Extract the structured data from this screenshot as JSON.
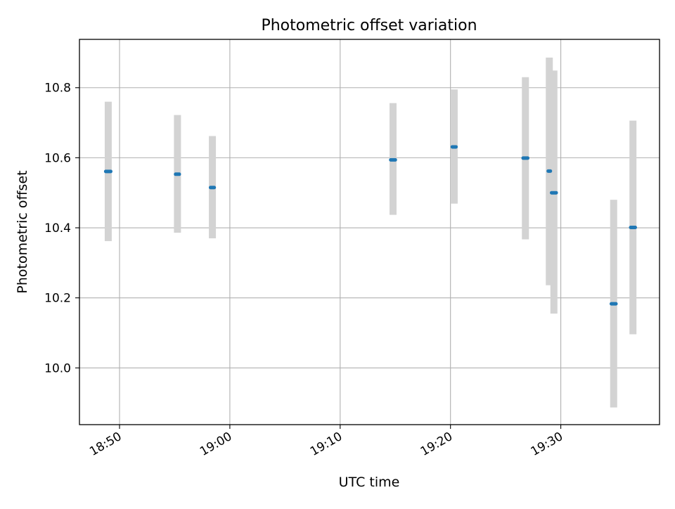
{
  "chart_data": {
    "type": "scatter",
    "title": "Photometric offset variation",
    "xlabel": "UTC time",
    "ylabel": "Photometric offset",
    "x_ticks": [
      "18:50",
      "19:00",
      "19:10",
      "19:20",
      "19:30"
    ],
    "y_ticks": [
      "10.0",
      "10.2",
      "10.4",
      "10.6",
      "10.8"
    ],
    "xlim": [
      "18:46:22",
      "19:38:57"
    ],
    "ylim": [
      9.838,
      10.938
    ],
    "grid": true,
    "marker_color": "#1f77b4",
    "errorbar_color": "#d3d3d3",
    "points": [
      {
        "time_start": "18:48:45",
        "time_end": "18:49:12",
        "value": 10.561,
        "err_low": 10.362,
        "err_high": 10.76
      },
      {
        "time_start": "18:55:05",
        "time_end": "18:55:25",
        "value": 10.553,
        "err_low": 10.386,
        "err_high": 10.722
      },
      {
        "time_start": "18:58:15",
        "time_end": "18:58:35",
        "value": 10.515,
        "err_low": 10.37,
        "err_high": 10.662
      },
      {
        "time_start": "19:14:35",
        "time_end": "19:15:00",
        "value": 10.594,
        "err_low": 10.437,
        "err_high": 10.756
      },
      {
        "time_start": "19:20:10",
        "time_end": "19:20:30",
        "value": 10.631,
        "err_low": 10.469,
        "err_high": 10.795
      },
      {
        "time_start": "19:26:35",
        "time_end": "19:27:00",
        "value": 10.599,
        "err_low": 10.367,
        "err_high": 10.83
      },
      {
        "time_start": "19:28:55",
        "time_end": "19:29:00",
        "value": 10.562,
        "err_low": 10.236,
        "err_high": 10.886
      },
      {
        "time_start": "19:29:10",
        "time_end": "19:29:35",
        "value": 10.5,
        "err_low": 10.155,
        "err_high": 10.849
      },
      {
        "time_start": "19:34:35",
        "time_end": "19:35:00",
        "value": 10.183,
        "err_low": 9.887,
        "err_high": 10.48
      },
      {
        "time_start": "19:36:20",
        "time_end": "19:36:45",
        "value": 10.401,
        "err_low": 10.096,
        "err_high": 10.706
      }
    ]
  }
}
